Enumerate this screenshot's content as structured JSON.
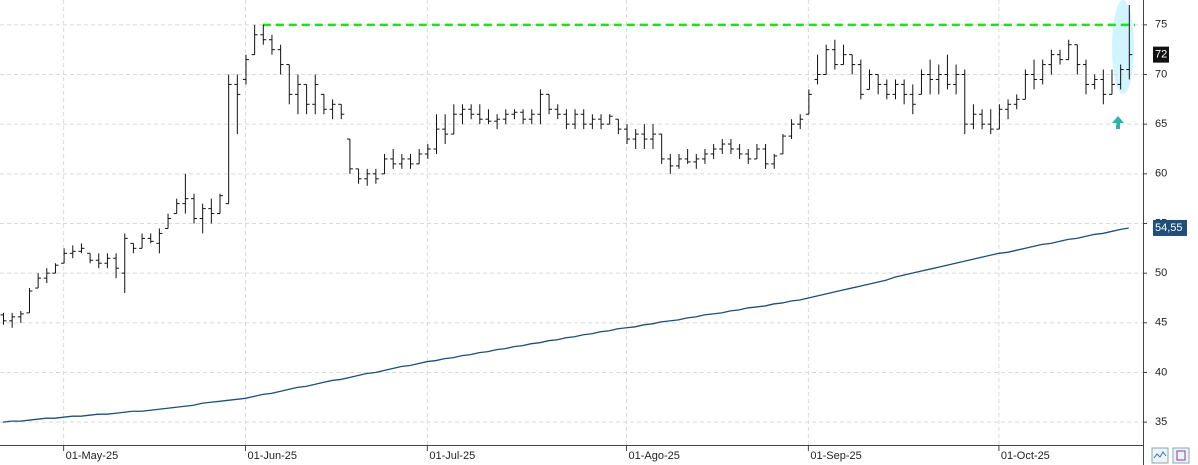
{
  "chart_data": {
    "type": "ohlc",
    "categories": [
      null,
      null,
      null,
      null,
      null,
      null,
      null,
      "01-May-25",
      null,
      null,
      null,
      null,
      null,
      null,
      null,
      null,
      null,
      null,
      null,
      null,
      null,
      null,
      null,
      null,
      null,
      null,
      null,
      null,
      "01-Jun-25",
      null,
      null,
      null,
      null,
      null,
      null,
      null,
      null,
      null,
      null,
      null,
      null,
      null,
      null,
      null,
      null,
      null,
      null,
      null,
      null,
      "01-Jul-25",
      null,
      null,
      null,
      null,
      null,
      null,
      null,
      null,
      null,
      null,
      null,
      null,
      null,
      null,
      null,
      null,
      null,
      null,
      null,
      null,
      null,
      null,
      "01-Ago-25",
      null,
      null,
      null,
      null,
      null,
      null,
      null,
      null,
      null,
      null,
      null,
      null,
      null,
      null,
      null,
      null,
      null,
      null,
      null,
      null,
      "01-Sep-25",
      null,
      null,
      null,
      null,
      null,
      null,
      null,
      null,
      null,
      null,
      null,
      null,
      null,
      null,
      null,
      null,
      null,
      null,
      null,
      null,
      null,
      "01-Oct-25",
      null,
      null,
      null,
      null,
      null,
      null,
      null,
      null,
      null,
      null,
      null,
      null,
      null,
      null,
      null
    ],
    "ohlc": [
      [
        45.8,
        46,
        44.8,
        45.2
      ],
      [
        45.2,
        46,
        44.5,
        45.6
      ],
      [
        45.6,
        46.2,
        45,
        45.9
      ],
      [
        46,
        48.5,
        46,
        48.2
      ],
      [
        48.5,
        50,
        48.5,
        49.5
      ],
      [
        49.5,
        50.5,
        49,
        50
      ],
      [
        50,
        51,
        50,
        50.8
      ],
      [
        51,
        52.5,
        51,
        52
      ],
      [
        52,
        52.8,
        51.5,
        52.2
      ],
      [
        52.2,
        53,
        52,
        52.5
      ],
      [
        52,
        52,
        51,
        51.3
      ],
      [
        51.3,
        52,
        50.5,
        51
      ],
      [
        51,
        52,
        50.5,
        51.5
      ],
      [
        51.5,
        52,
        49.5,
        50.5
      ],
      [
        50,
        54,
        48,
        53.5
      ],
      [
        53,
        53,
        52,
        52.5
      ],
      [
        52.5,
        54,
        52.5,
        53.5
      ],
      [
        53.5,
        54,
        53,
        53.2
      ],
      [
        53,
        54.5,
        52,
        54
      ],
      [
        54.5,
        56,
        54.5,
        55.5
      ],
      [
        56,
        57.5,
        56,
        57
      ],
      [
        57,
        60,
        56,
        57.5
      ],
      [
        57.5,
        58,
        55,
        55.5
      ],
      [
        55.5,
        57,
        54,
        56.5
      ],
      [
        56.5,
        57.5,
        55,
        56
      ],
      [
        56,
        58,
        56,
        57.8
      ],
      [
        57,
        70,
        57,
        69
      ],
      [
        69,
        70,
        64,
        68
      ],
      [
        69.5,
        72,
        69,
        71.5
      ],
      [
        72,
        75,
        72,
        74
      ],
      [
        74,
        75,
        73,
        73.5
      ],
      [
        73.5,
        74,
        72,
        72.5
      ],
      [
        72.5,
        73,
        70,
        71
      ],
      [
        71,
        71,
        67,
        68
      ],
      [
        68,
        70,
        66,
        69
      ],
      [
        69,
        69,
        66,
        67
      ],
      [
        67,
        70,
        66,
        69
      ],
      [
        68,
        68,
        66,
        66.5
      ],
      [
        66.5,
        67.5,
        65.5,
        67
      ],
      [
        67,
        67,
        65.5,
        66
      ],
      [
        63.5,
        63.5,
        60,
        60.5
      ],
      [
        60.5,
        60.5,
        59,
        59.5
      ],
      [
        59.5,
        60.5,
        58.8,
        60
      ],
      [
        60,
        60.5,
        59,
        59.5
      ],
      [
        60,
        62,
        60,
        61.5
      ],
      [
        61.5,
        62.5,
        60.5,
        61
      ],
      [
        61,
        62,
        60.5,
        61.5
      ],
      [
        61.5,
        62,
        60.5,
        61
      ],
      [
        61,
        62.5,
        61,
        62
      ],
      [
        62,
        63,
        61.5,
        62.5
      ],
      [
        62.5,
        66,
        62,
        64.5
      ],
      [
        64.5,
        66,
        63,
        64
      ],
      [
        64,
        67,
        64,
        66
      ],
      [
        66,
        67,
        65,
        66.5
      ],
      [
        66.5,
        67,
        65.5,
        66
      ],
      [
        66,
        67,
        65,
        65.5
      ],
      [
        65.5,
        66.5,
        65,
        65.3
      ],
      [
        65.3,
        66,
        64.5,
        65.5
      ],
      [
        65.5,
        66.5,
        65,
        66
      ],
      [
        66,
        66.5,
        65.5,
        66.2
      ],
      [
        66.2,
        66.5,
        65,
        65.5
      ],
      [
        65.5,
        66.5,
        65,
        66
      ],
      [
        66,
        68.5,
        65,
        68
      ],
      [
        68,
        68,
        66,
        66.5
      ],
      [
        66.5,
        67,
        65.5,
        66
      ],
      [
        66,
        66.5,
        64.5,
        65
      ],
      [
        65,
        66.5,
        64.5,
        66
      ],
      [
        66,
        66.5,
        64.5,
        65
      ],
      [
        65,
        66,
        64.5,
        65.5
      ],
      [
        65.5,
        66,
        64.5,
        65
      ],
      [
        65,
        66,
        65,
        65.8
      ],
      [
        65.5,
        65.5,
        64,
        64.5
      ],
      [
        64.5,
        65,
        63,
        63.5
      ],
      [
        63.5,
        64.5,
        62.5,
        64
      ],
      [
        64,
        65,
        62.5,
        63.5
      ],
      [
        63.5,
        65,
        62.5,
        64
      ],
      [
        64,
        64,
        61,
        61.5
      ],
      [
        61.5,
        62,
        60,
        60.8
      ],
      [
        60.8,
        62,
        60.5,
        61.5
      ],
      [
        61.5,
        62.5,
        61,
        61.2
      ],
      [
        61.2,
        62,
        60.5,
        61.5
      ],
      [
        61.5,
        62.5,
        61,
        62
      ],
      [
        62,
        63,
        61.5,
        62.5
      ],
      [
        62.5,
        63.5,
        62,
        63
      ],
      [
        63,
        63.5,
        62,
        62.5
      ],
      [
        62.5,
        63,
        61.5,
        62
      ],
      [
        62,
        62.5,
        61,
        61.5
      ],
      [
        61.5,
        63,
        61.5,
        62.5
      ],
      [
        62.5,
        63,
        60.5,
        61
      ],
      [
        61,
        62,
        60.5,
        61.8
      ],
      [
        62,
        64,
        62,
        63.8
      ],
      [
        63.8,
        65.5,
        63.5,
        65
      ],
      [
        65,
        66,
        64.5,
        65.5
      ],
      [
        66,
        68.5,
        66,
        68
      ],
      [
        69.5,
        72,
        69,
        70
      ],
      [
        70,
        73,
        70,
        72.5
      ],
      [
        72.5,
        73.5,
        70.5,
        71
      ],
      [
        71,
        73,
        71,
        72
      ],
      [
        72,
        72,
        70,
        71
      ],
      [
        71,
        71.5,
        67.5,
        68
      ],
      [
        68.5,
        70.5,
        68.5,
        70
      ],
      [
        70,
        70,
        68,
        69
      ],
      [
        69,
        69.5,
        67.5,
        68
      ],
      [
        68,
        69.5,
        67.5,
        69
      ],
      [
        69,
        69.5,
        67,
        68
      ],
      [
        68,
        69,
        66,
        67
      ],
      [
        68,
        70.5,
        68,
        70
      ],
      [
        70,
        71.5,
        68,
        69.5
      ],
      [
        69.5,
        71,
        68,
        70
      ],
      [
        70,
        72,
        68.5,
        69
      ],
      [
        69,
        71,
        68,
        70
      ],
      [
        70,
        70.5,
        64,
        65
      ],
      [
        65,
        67,
        64.5,
        66
      ],
      [
        66,
        66.5,
        64.5,
        65
      ],
      [
        65,
        66.5,
        64,
        64.5
      ],
      [
        64.5,
        67,
        64.5,
        66.5
      ],
      [
        66.5,
        67.5,
        65.5,
        67
      ],
      [
        67,
        68,
        66.5,
        67.5
      ],
      [
        67.5,
        70.5,
        67.5,
        70
      ],
      [
        70,
        71.5,
        68.5,
        69.5
      ],
      [
        69.5,
        71.5,
        69,
        71
      ],
      [
        71,
        72.5,
        70,
        72
      ],
      [
        72,
        72.5,
        71,
        71.5
      ],
      [
        71.5,
        73.5,
        71.5,
        73
      ],
      [
        73,
        73,
        70,
        71
      ],
      [
        71,
        71.5,
        68,
        69
      ],
      [
        69,
        70,
        68.5,
        69.5
      ],
      [
        69.5,
        70.5,
        67,
        68
      ],
      [
        68,
        70.5,
        68,
        69
      ],
      [
        69,
        71,
        68.5,
        70.5
      ],
      [
        70.5,
        77,
        69.5,
        72
      ]
    ],
    "moving_average": {
      "color": "#1f4e79",
      "values": [
        35.0,
        35.1,
        35.1,
        35.2,
        35.3,
        35.4,
        35.4,
        35.5,
        35.6,
        35.6,
        35.7,
        35.8,
        35.8,
        35.9,
        36.0,
        36.1,
        36.1,
        36.2,
        36.3,
        36.4,
        36.5,
        36.6,
        36.7,
        36.9,
        37.0,
        37.1,
        37.2,
        37.3,
        37.4,
        37.6,
        37.8,
        37.9,
        38.1,
        38.3,
        38.5,
        38.6,
        38.8,
        39.0,
        39.2,
        39.3,
        39.5,
        39.7,
        39.9,
        40.0,
        40.2,
        40.4,
        40.6,
        40.7,
        40.9,
        41.1,
        41.2,
        41.4,
        41.5,
        41.7,
        41.8,
        42.0,
        42.1,
        42.3,
        42.4,
        42.6,
        42.7,
        42.9,
        43.0,
        43.2,
        43.3,
        43.5,
        43.6,
        43.8,
        43.9,
        44.1,
        44.2,
        44.4,
        44.5,
        44.6,
        44.8,
        44.9,
        45.1,
        45.2,
        45.3,
        45.5,
        45.6,
        45.8,
        45.9,
        46.0,
        46.2,
        46.3,
        46.5,
        46.6,
        46.7,
        46.9,
        47.0,
        47.2,
        47.3,
        47.5,
        47.7,
        47.9,
        48.1,
        48.3,
        48.5,
        48.7,
        48.9,
        49.1,
        49.3,
        49.6,
        49.8,
        50.0,
        50.2,
        50.4,
        50.6,
        50.8,
        51.0,
        51.2,
        51.4,
        51.6,
        51.8,
        52.0,
        52.1,
        52.3,
        52.5,
        52.7,
        52.9,
        53.0,
        53.2,
        53.4,
        53.5,
        53.7,
        53.9,
        54.0,
        54.2,
        54.4,
        54.55
      ]
    },
    "reference_line": {
      "value": 75,
      "color": "#22dd22"
    },
    "last_price": 72,
    "moving_average_label": {
      "value": 54.55,
      "label": "54,55"
    },
    "ylim": [
      32.7,
      77.5
    ],
    "yticks": [
      35,
      40,
      45,
      50,
      55,
      60,
      65,
      70,
      75
    ],
    "grid": true,
    "color": "#111111"
  }
}
